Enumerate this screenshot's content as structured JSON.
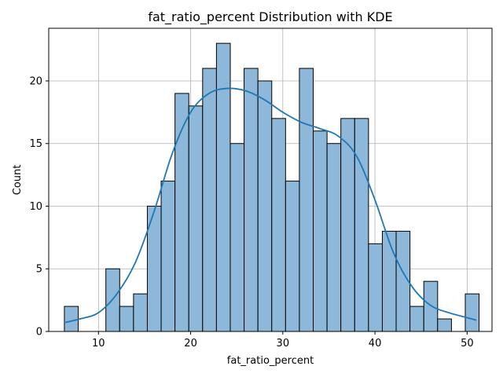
{
  "chart_data": {
    "type": "bar",
    "subtype": "histogram",
    "title": "fat_ratio_percent Distribution with KDE",
    "xlabel": "fat_ratio_percent",
    "ylabel": "Count",
    "xlim": [
      4.6,
      52.7
    ],
    "ylim": [
      0,
      24.2
    ],
    "grid": true,
    "colors": {
      "bar_fill": "#8db8da",
      "bar_edge": "#000000",
      "kde_line": "#1f77b4",
      "grid": "#b0b0b0"
    },
    "x_ticks": [
      10,
      20,
      30,
      40,
      50
    ],
    "y_ticks": [
      0,
      5,
      10,
      15,
      20
    ],
    "x_tick_labels": [
      "10",
      "20",
      "30",
      "40",
      "50"
    ],
    "y_tick_labels": [
      "0",
      "5",
      "10",
      "15",
      "20"
    ],
    "bins": {
      "start": 6.3,
      "width": 1.5,
      "counts": [
        2,
        0,
        0,
        5,
        2,
        3,
        10,
        12,
        19,
        18,
        21,
        23,
        15,
        21,
        20,
        17,
        12,
        21,
        16,
        15,
        17,
        17,
        7,
        8,
        8,
        2,
        4,
        1,
        0,
        3
      ]
    },
    "series": [
      {
        "type": "line",
        "x": [
          6.3,
          8,
          10,
          12,
          14,
          16,
          18,
          20,
          22,
          24,
          26,
          28,
          30,
          32,
          34,
          36,
          38,
          40,
          42,
          44,
          46,
          48,
          50,
          51
        ],
        "values": [
          0.7,
          1.0,
          1.5,
          3.0,
          5.5,
          9.5,
          14.2,
          17.5,
          19.0,
          19.4,
          19.2,
          18.5,
          17.5,
          16.7,
          16.2,
          15.6,
          14.0,
          10.5,
          6.3,
          3.6,
          2.1,
          1.5,
          1.1,
          0.9
        ]
      }
    ]
  }
}
